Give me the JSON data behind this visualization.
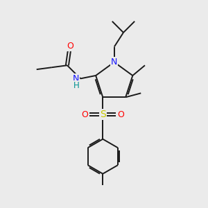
{
  "background_color": "#ebebeb",
  "bond_color": "#1a1a1a",
  "atom_colors": {
    "N": "#1414ff",
    "O": "#ff0000",
    "S": "#c8c800",
    "H": "#009090",
    "C": "#1a1a1a"
  },
  "figsize": [
    3.0,
    3.0
  ],
  "dpi": 100
}
